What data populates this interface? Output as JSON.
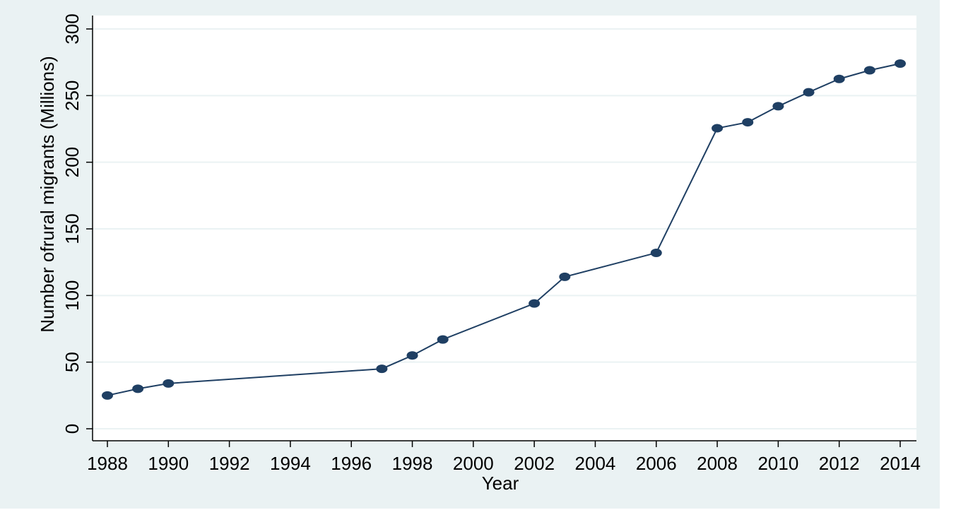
{
  "chart_data": {
    "type": "line",
    "title": "",
    "xlabel": "Year",
    "ylabel": "Number ofrural migrants  (Millions)",
    "xlim": [
      1988,
      2014
    ],
    "ylim": [
      0,
      300
    ],
    "x_ticks": [
      1988,
      1990,
      1992,
      1994,
      1996,
      1998,
      2000,
      2002,
      2004,
      2006,
      2008,
      2010,
      2012,
      2014
    ],
    "y_ticks": [
      0,
      50,
      100,
      150,
      200,
      250,
      300
    ],
    "grid": true,
    "legend": "none",
    "series": [
      {
        "color": "#1f3f63",
        "x": [
          1988,
          1989,
          1990,
          1997,
          1998,
          1999,
          2002,
          2003,
          2006,
          2008,
          2009,
          2010,
          2011,
          2012,
          2013,
          2014
        ],
        "y": [
          25,
          30,
          34,
          45,
          55,
          67,
          94,
          114,
          132,
          225.5,
          230,
          242,
          252.5,
          262.5,
          269,
          274
        ]
      }
    ]
  }
}
